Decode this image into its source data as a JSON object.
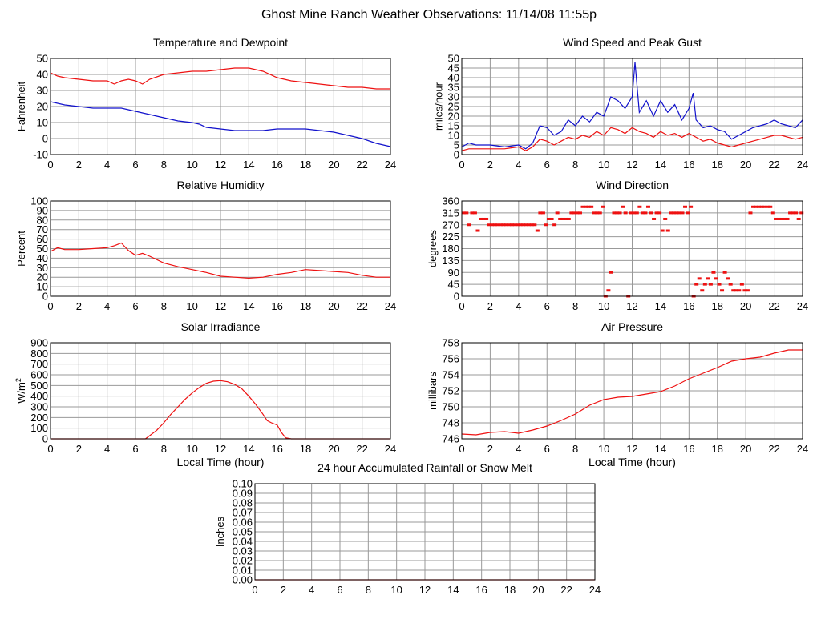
{
  "page": {
    "title": "Ghost Mine Ranch Weather Observations: 11/14/08 11:55p"
  },
  "colors": {
    "red": "#ee1111",
    "blue": "#1111cc",
    "grid": "#999999",
    "frame": "#000000"
  },
  "chart_data": [
    {
      "id": "temp",
      "type": "line",
      "title": "Temperature and Dewpoint",
      "ylabel": "Fahrenheit",
      "xlabel": "",
      "xlim": [
        0,
        24
      ],
      "ylim": [
        -10,
        50
      ],
      "xticks": [
        0,
        2,
        4,
        6,
        8,
        10,
        12,
        14,
        16,
        18,
        20,
        22,
        24
      ],
      "yticks": [
        "-10",
        "0",
        "10",
        "20",
        "30",
        "40",
        "50"
      ],
      "series": [
        {
          "name": "Temperature",
          "color": "#ee1111",
          "style": "line",
          "x": [
            0,
            0.5,
            1,
            2,
            3,
            4,
            4.5,
            5,
            5.5,
            6,
            6.5,
            7,
            8,
            9,
            10,
            11,
            12,
            13,
            14,
            15,
            16,
            17,
            18,
            19,
            20,
            21,
            22,
            23,
            24
          ],
          "y": [
            41,
            39,
            38,
            37,
            36,
            36,
            34,
            36,
            37,
            36,
            34,
            37,
            40,
            41,
            42,
            42,
            43,
            44,
            44,
            42,
            38,
            36,
            35,
            34,
            33,
            32,
            32,
            31,
            31
          ]
        },
        {
          "name": "Dewpoint",
          "color": "#1111cc",
          "style": "line",
          "x": [
            0,
            1,
            2,
            3,
            4,
            5,
            5.5,
            6,
            6.5,
            7,
            8,
            9,
            10,
            10.5,
            11,
            12,
            13,
            14,
            15,
            16,
            17,
            18,
            19,
            20,
            21,
            22,
            23,
            24
          ],
          "y": [
            23,
            21,
            20,
            19,
            19,
            19,
            18,
            17,
            16,
            15,
            13,
            11,
            10,
            9,
            7,
            6,
            5,
            5,
            5,
            6,
            6,
            6,
            5,
            4,
            2,
            0,
            -3,
            -5
          ]
        }
      ]
    },
    {
      "id": "wind",
      "type": "line",
      "title": "Wind Speed and Peak Gust",
      "ylabel": "miles/hour",
      "xlabel": "",
      "xlim": [
        0,
        24
      ],
      "ylim": [
        0,
        50
      ],
      "xticks": [
        0,
        2,
        4,
        6,
        8,
        10,
        12,
        14,
        16,
        18,
        20,
        22,
        24
      ],
      "yticks": [
        "0",
        "5",
        "10",
        "15",
        "20",
        "25",
        "30",
        "35",
        "40",
        "45",
        "50"
      ],
      "series": [
        {
          "name": "Peak Gust",
          "color": "#1111cc",
          "style": "line",
          "x": [
            0,
            0.5,
            1,
            2,
            3,
            4,
            4.5,
            5,
            5.5,
            6,
            6.5,
            7,
            7.5,
            8,
            8.5,
            9,
            9.5,
            10,
            10.5,
            11,
            11.5,
            12,
            12.2,
            12.5,
            13,
            13.5,
            14,
            14.5,
            15,
            15.5,
            16,
            16.3,
            16.5,
            17,
            17.5,
            18,
            18.5,
            19,
            19.5,
            20,
            20.5,
            21,
            21.5,
            22,
            22.5,
            23,
            23.5,
            24
          ],
          "y": [
            4,
            6,
            5,
            5,
            4,
            5,
            3,
            6,
            15,
            14,
            10,
            12,
            18,
            15,
            20,
            17,
            22,
            20,
            30,
            28,
            24,
            30,
            48,
            22,
            28,
            20,
            28,
            22,
            26,
            18,
            24,
            32,
            18,
            14,
            15,
            13,
            12,
            8,
            10,
            12,
            14,
            15,
            16,
            18,
            16,
            15,
            14,
            18
          ]
        },
        {
          "name": "Wind Speed",
          "color": "#ee1111",
          "style": "line",
          "x": [
            0,
            0.5,
            1,
            2,
            3,
            4,
            4.5,
            5,
            5.5,
            6,
            6.5,
            7,
            7.5,
            8,
            8.5,
            9,
            9.5,
            10,
            10.5,
            11,
            11.5,
            12,
            12.5,
            13,
            13.5,
            14,
            14.5,
            15,
            15.5,
            16,
            16.5,
            17,
            17.5,
            18,
            18.5,
            19,
            19.5,
            20,
            20.5,
            21,
            21.5,
            22,
            22.5,
            23,
            23.5,
            24
          ],
          "y": [
            2,
            3,
            3,
            3,
            3,
            4,
            2,
            4,
            8,
            7,
            5,
            7,
            9,
            8,
            10,
            9,
            12,
            10,
            14,
            13,
            11,
            14,
            12,
            11,
            9,
            12,
            10,
            11,
            9,
            11,
            9,
            7,
            8,
            6,
            5,
            4,
            5,
            6,
            7,
            8,
            9,
            10,
            10,
            9,
            8,
            9
          ]
        }
      ]
    },
    {
      "id": "humidity",
      "type": "line",
      "title": "Relative Humidity",
      "ylabel": "Percent",
      "xlabel": "",
      "xlim": [
        0,
        24
      ],
      "ylim": [
        0,
        100
      ],
      "xticks": [
        0,
        2,
        4,
        6,
        8,
        10,
        12,
        14,
        16,
        18,
        20,
        22,
        24
      ],
      "yticks": [
        "0",
        "10",
        "20",
        "30",
        "40",
        "50",
        "60",
        "70",
        "80",
        "90",
        "100"
      ],
      "series": [
        {
          "name": "Relative Humidity",
          "color": "#ee1111",
          "style": "line",
          "x": [
            0,
            0.5,
            1,
            2,
            3,
            4,
            4.5,
            5,
            5.5,
            6,
            6.5,
            7,
            8,
            9,
            10,
            11,
            12,
            13,
            14,
            15,
            16,
            17,
            18,
            19,
            20,
            21,
            22,
            23,
            24
          ],
          "y": [
            47,
            51,
            49,
            49,
            50,
            51,
            53,
            56,
            48,
            43,
            45,
            42,
            35,
            31,
            28,
            25,
            21,
            20,
            19,
            20,
            23,
            25,
            28,
            27,
            26,
            25,
            22,
            20,
            20
          ]
        }
      ]
    },
    {
      "id": "direction",
      "type": "scatter",
      "title": "Wind Direction",
      "ylabel": "degrees",
      "xlabel": "",
      "xlim": [
        0,
        24
      ],
      "ylim": [
        0,
        360
      ],
      "xticks": [
        0,
        2,
        4,
        6,
        8,
        10,
        12,
        14,
        16,
        18,
        20,
        22,
        24
      ],
      "yticks": [
        "0",
        "45",
        "90",
        "135",
        "180",
        "225",
        "270",
        "315",
        "360"
      ],
      "series": [
        {
          "name": "Wind Direction",
          "color": "#ee1111",
          "style": "dots",
          "x": [
            0.1,
            0.3,
            0.5,
            0.7,
            0.9,
            1.1,
            1.3,
            1.5,
            1.7,
            1.9,
            2.1,
            2.3,
            2.5,
            2.7,
            2.9,
            3.1,
            3.3,
            3.5,
            3.7,
            3.9,
            4.1,
            4.3,
            4.5,
            4.7,
            4.9,
            5.1,
            5.3,
            5.5,
            5.7,
            5.9,
            6.1,
            6.3,
            6.5,
            6.7,
            6.9,
            7.1,
            7.3,
            7.5,
            7.7,
            7.9,
            8.1,
            8.3,
            8.5,
            8.7,
            8.9,
            9.1,
            9.3,
            9.5,
            9.7,
            9.9,
            10.1,
            10.3,
            10.5,
            10.7,
            10.9,
            11.1,
            11.3,
            11.5,
            11.7,
            11.9,
            12.1,
            12.3,
            12.5,
            12.7,
            12.9,
            13.1,
            13.3,
            13.5,
            13.7,
            13.9,
            14.1,
            14.3,
            14.5,
            14.7,
            14.9,
            15.1,
            15.3,
            15.5,
            15.7,
            15.9,
            16.1,
            16.3,
            16.5,
            16.7,
            16.9,
            17.1,
            17.3,
            17.5,
            17.7,
            17.9,
            18.1,
            18.3,
            18.5,
            18.7,
            18.9,
            19.1,
            19.3,
            19.5,
            19.7,
            19.9,
            20.1,
            20.3,
            20.5,
            20.7,
            20.9,
            21.1,
            21.3,
            21.5,
            21.7,
            21.9,
            22.1,
            22.3,
            22.5,
            22.7,
            22.9,
            23.1,
            23.3,
            23.5,
            23.7,
            23.9
          ],
          "y": [
            315,
            315,
            270,
            315,
            315,
            248,
            292,
            292,
            292,
            270,
            270,
            270,
            270,
            270,
            270,
            270,
            270,
            270,
            270,
            270,
            270,
            270,
            270,
            270,
            270,
            270,
            248,
            315,
            315,
            270,
            292,
            292,
            270,
            315,
            292,
            292,
            292,
            292,
            315,
            315,
            315,
            315,
            338,
            338,
            338,
            338,
            315,
            315,
            315,
            338,
            0,
            22,
            90,
            315,
            315,
            315,
            338,
            315,
            0,
            315,
            315,
            315,
            338,
            315,
            315,
            338,
            315,
            292,
            315,
            315,
            248,
            292,
            248,
            315,
            315,
            315,
            315,
            315,
            338,
            315,
            338,
            0,
            45,
            67,
            22,
            45,
            67,
            45,
            90,
            67,
            45,
            22,
            90,
            67,
            45,
            22,
            22,
            22,
            45,
            22,
            22,
            315,
            338,
            338,
            338,
            338,
            338,
            338,
            338,
            315,
            292,
            292,
            292,
            292,
            292,
            315,
            315,
            315,
            292,
            315
          ]
        }
      ]
    },
    {
      "id": "solar",
      "type": "line",
      "title": "Solar Irradiance",
      "ylabel": "W/m",
      "ylabel_sup": "2",
      "xlabel": "Local Time (hour)",
      "xlim": [
        0,
        24
      ],
      "ylim": [
        0,
        900
      ],
      "xticks": [
        0,
        2,
        4,
        6,
        8,
        10,
        12,
        14,
        16,
        18,
        20,
        22,
        24
      ],
      "yticks": [
        "0",
        "100",
        "200",
        "300",
        "400",
        "500",
        "600",
        "700",
        "800",
        "900"
      ],
      "series": [
        {
          "name": "Solar Irradiance",
          "color": "#ee1111",
          "style": "line",
          "x": [
            0,
            6.7,
            7,
            7.5,
            8,
            8.5,
            9,
            9.5,
            10,
            10.5,
            11,
            11.5,
            12,
            12.5,
            13,
            13.5,
            14,
            14.5,
            15,
            15.3,
            15.6,
            16,
            16.3,
            16.6,
            17,
            24
          ],
          "y": [
            0,
            0,
            30,
            80,
            150,
            230,
            300,
            370,
            430,
            480,
            520,
            540,
            545,
            535,
            510,
            470,
            400,
            320,
            230,
            170,
            150,
            130,
            60,
            10,
            0,
            0
          ]
        }
      ]
    },
    {
      "id": "pressure",
      "type": "line",
      "title": "Air Pressure",
      "ylabel": "millibars",
      "xlabel": "Local Time (hour)",
      "xlim": [
        0,
        24
      ],
      "ylim": [
        746,
        758
      ],
      "xticks": [
        0,
        2,
        4,
        6,
        8,
        10,
        12,
        14,
        16,
        18,
        20,
        22,
        24
      ],
      "yticks": [
        "746",
        "748",
        "750",
        "752",
        "754",
        "756",
        "758"
      ],
      "series": [
        {
          "name": "Air Pressure",
          "color": "#ee1111",
          "style": "line",
          "x": [
            0,
            1,
            2,
            3,
            4,
            5,
            6,
            7,
            8,
            9,
            10,
            11,
            12,
            13,
            14,
            15,
            16,
            17,
            18,
            19,
            20,
            21,
            22,
            23,
            24
          ],
          "y": [
            746.6,
            746.5,
            746.8,
            746.9,
            746.7,
            747.1,
            747.6,
            748.3,
            749.1,
            750.2,
            750.9,
            751.2,
            751.3,
            751.6,
            751.9,
            752.6,
            753.5,
            754.2,
            754.9,
            755.7,
            756.0,
            756.2,
            756.7,
            757.1,
            757.1
          ]
        }
      ]
    },
    {
      "id": "rain",
      "type": "line",
      "title": "24 hour Accumulated Rainfall or Snow Melt",
      "ylabel": "Inches",
      "xlabel": "",
      "xlim": [
        0,
        24
      ],
      "ylim": [
        0,
        0.1
      ],
      "xticks": [
        0,
        2,
        4,
        6,
        8,
        10,
        12,
        14,
        16,
        18,
        20,
        22,
        24
      ],
      "yticks": [
        "0.00",
        "0.01",
        "0.02",
        "0.03",
        "0.04",
        "0.05",
        "0.06",
        "0.07",
        "0.08",
        "0.09",
        "0.10"
      ],
      "series": [
        {
          "name": "Rainfall",
          "color": "#ee1111",
          "style": "line",
          "x": [
            0,
            24
          ],
          "y": [
            0,
            0
          ]
        }
      ]
    }
  ]
}
